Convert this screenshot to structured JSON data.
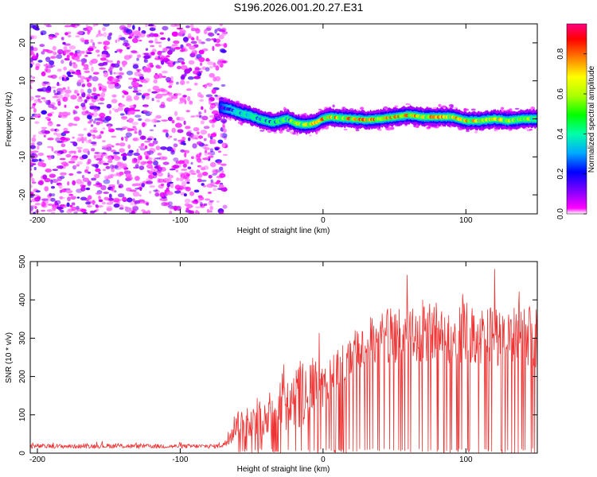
{
  "figure": {
    "title": "S196.2026.001.20.27.E31"
  },
  "chart_data": [
    {
      "type": "heatmap",
      "title": "S196.2026.001.20.27.E31",
      "xlabel": "Height of straight line (km)",
      "ylabel": "Frequency (Hz)",
      "xlim": [
        -205,
        150
      ],
      "ylim": [
        -25,
        25
      ],
      "xticks": [
        -200,
        -100,
        0,
        100
      ],
      "yticks": [
        -20,
        -10,
        0,
        10,
        20
      ],
      "grid": false,
      "colorbar": {
        "label": "Normalized spectral amplitude",
        "range": [
          0,
          0.95
        ],
        "ticks": [
          0.0,
          0.2,
          0.4,
          0.6,
          0.8
        ],
        "tick_labels": [
          "0.0",
          "0.2",
          "0.4",
          "0.6",
          "0.8"
        ],
        "colormap": [
          "#ffffff",
          "#ff00ff",
          "#8000ff",
          "#0000ff",
          "#00c8ff",
          "#00ff80",
          "#80ff00",
          "#ffff00",
          "#ff8000",
          "#ff0000",
          "#ff0080"
        ]
      },
      "noise_region": {
        "x_range": [
          -205,
          -68
        ],
        "amplitude": [
          0.05,
          0.25
        ]
      },
      "signal_band": {
        "x": [
          -72,
          -65,
          -58,
          -52,
          -45,
          -40,
          -35,
          -30,
          -25,
          -20,
          -15,
          -10,
          -5,
          0,
          5,
          10,
          20,
          30,
          40,
          50,
          60,
          70,
          80,
          90,
          100,
          110,
          120,
          130,
          140,
          150
        ],
        "center_hz": [
          3,
          2.5,
          1.5,
          1.0,
          0.0,
          -0.5,
          -1.0,
          -0.5,
          0.0,
          -1.0,
          -1.5,
          -1.5,
          -1.0,
          0.0,
          0.5,
          0.3,
          0.0,
          -0.3,
          0.0,
          0.5,
          1.0,
          0.5,
          0.5,
          0.5,
          -0.5,
          -0.5,
          0.0,
          -0.5,
          0.0,
          0.0
        ],
        "peak_amplitude": [
          0.3,
          0.4,
          0.45,
          0.45,
          0.5,
          0.5,
          0.5,
          0.55,
          0.6,
          0.65,
          0.7,
          0.75,
          0.8,
          0.85,
          0.85,
          0.8,
          0.85,
          0.85,
          0.85,
          0.85,
          0.85,
          0.8,
          0.85,
          0.8,
          0.8,
          0.75,
          0.8,
          0.7,
          0.7,
          0.6
        ]
      }
    },
    {
      "type": "line",
      "xlabel": "Height of straight line (km)",
      "ylabel": "SNR (10 * v/v)",
      "xlim": [
        -205,
        150
      ],
      "ylim": [
        0,
        500
      ],
      "xticks": [
        -200,
        -100,
        0,
        100
      ],
      "yticks": [
        0,
        100,
        200,
        300,
        400,
        500
      ],
      "grid": false,
      "color": "#ee3333",
      "x": [
        -205,
        -190,
        -170,
        -150,
        -130,
        -110,
        -90,
        -75,
        -68,
        -64,
        -60,
        -55,
        -50,
        -45,
        -40,
        -35,
        -30,
        -25,
        -20,
        -15,
        -10,
        -5,
        0,
        5,
        10,
        15,
        20,
        25,
        30,
        35,
        40,
        45,
        50,
        55,
        60,
        65,
        70,
        75,
        80,
        85,
        90,
        95,
        100,
        105,
        110,
        115,
        120,
        125,
        130,
        135,
        140,
        145,
        150
      ],
      "baseline": [
        18,
        18,
        18,
        19,
        18,
        18,
        18,
        18,
        25,
        50,
        90,
        75,
        80,
        100,
        105,
        110,
        140,
        150,
        155,
        150,
        185,
        195,
        170,
        200,
        215,
        230,
        250,
        265,
        285,
        290,
        300,
        305,
        310,
        305,
        310,
        300,
        320,
        315,
        320,
        305,
        315,
        310,
        320,
        310,
        305,
        300,
        310,
        300,
        310,
        305,
        300,
        305,
        300
      ],
      "spread": [
        8,
        8,
        8,
        9,
        8,
        8,
        8,
        8,
        15,
        40,
        60,
        50,
        50,
        80,
        80,
        90,
        120,
        130,
        140,
        130,
        120,
        90,
        80,
        90,
        80,
        90,
        90,
        90,
        100,
        100,
        100,
        110,
        110,
        110,
        110,
        110,
        120,
        110,
        110,
        110,
        110,
        110,
        110,
        110,
        110,
        110,
        110,
        110,
        110,
        110,
        110,
        110,
        110
      ],
      "dropout_start_x": -60,
      "dropout_probability": 0.18
    }
  ]
}
